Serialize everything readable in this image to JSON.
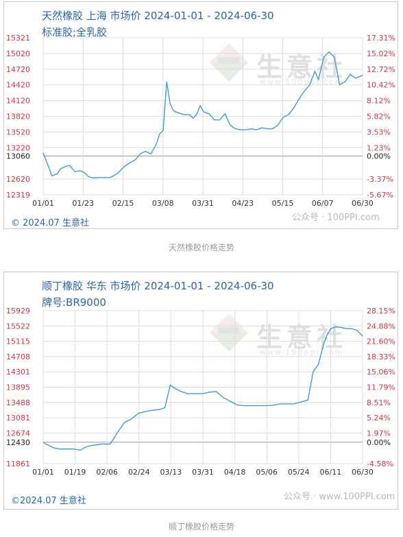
{
  "charts": [
    {
      "title": "天然橡胶 上海 市场价 2024-01-01 - 2024-06-30",
      "subtitle": "标准胶;全乳胶",
      "copyright": "© 2024.07 生意社",
      "watermark": "公众号 · 100PPI.com",
      "logo_text": "生意社",
      "logo_url": "www.100ppi.com",
      "caption": "天然橡胶价格走势"
    },
    {
      "title": "顺丁橡胶 华东 市场价 2024-01-01 - 2024-06-30",
      "subtitle": "牌号:BR9000",
      "copyright": "©2024.07 生意社",
      "watermark": "公众号 · www.100PPI.com",
      "logo_text": "生意社",
      "logo_url": "www.100ppi.com",
      "caption": "顺丁橡胶价格走势"
    }
  ],
  "colors": {
    "line": "#3b9cd9",
    "left_axis": "#d9333f",
    "baseline_label": "#222222",
    "title": "#2a64b0",
    "grid": "#dcdcdc"
  },
  "chart_data": [
    {
      "type": "line",
      "title": "天然橡胶 上海 市场价 2024-01-01 - 2024-06-30",
      "x_ticks": [
        "01/01",
        "01/23",
        "02/15",
        "03/08",
        "03/31",
        "04/23",
        "05/15",
        "06/07",
        "06/30"
      ],
      "y_ticks": [
        12319,
        12620,
        13060,
        13220,
        13520,
        13820,
        14120,
        14420,
        14720,
        15020,
        15321
      ],
      "y_right_ticks": [
        "-5.67%",
        "-3.37%",
        "0.00%",
        "1.23%",
        "3.53%",
        "5.82%",
        "8.12%",
        "10.42%",
        "12.72%",
        "15.02%",
        "17.31%"
      ],
      "baseline": 13060,
      "ylim": [
        12319,
        15321
      ],
      "grid": true,
      "series": [
        {
          "x": [
            "2024-01-01",
            "2024-01-03",
            "2024-01-06",
            "2024-01-09",
            "2024-01-11",
            "2024-01-13",
            "2024-01-16",
            "2024-01-19",
            "2024-01-22",
            "2024-01-24",
            "2024-01-27",
            "2024-01-30",
            "2024-02-02",
            "2024-02-05",
            "2024-02-08",
            "2024-02-12",
            "2024-02-16",
            "2024-02-19",
            "2024-02-22",
            "2024-02-25",
            "2024-02-28",
            "2024-03-02",
            "2024-03-05",
            "2024-03-07",
            "2024-03-09",
            "2024-03-11",
            "2024-03-13",
            "2024-03-15",
            "2024-03-18",
            "2024-03-21",
            "2024-03-24",
            "2024-03-26",
            "2024-03-28",
            "2024-03-30",
            "2024-04-01",
            "2024-04-04",
            "2024-04-07",
            "2024-04-10",
            "2024-04-13",
            "2024-04-16",
            "2024-04-19",
            "2024-04-22",
            "2024-04-25",
            "2024-04-28",
            "2024-05-01",
            "2024-05-04",
            "2024-05-07",
            "2024-05-10",
            "2024-05-13",
            "2024-05-16",
            "2024-05-19",
            "2024-05-22",
            "2024-05-25",
            "2024-05-28",
            "2024-05-31",
            "2024-06-03",
            "2024-06-05",
            "2024-06-08",
            "2024-06-11",
            "2024-06-14",
            "2024-06-17",
            "2024-06-20",
            "2024-06-23",
            "2024-06-26",
            "2024-06-30"
          ],
          "y": [
            13120,
            12950,
            12680,
            12720,
            12820,
            12850,
            12880,
            12760,
            12780,
            12750,
            12660,
            12640,
            12650,
            12650,
            12650,
            12720,
            12860,
            12930,
            12980,
            13100,
            13150,
            13100,
            13280,
            13480,
            13550,
            14480,
            14050,
            13920,
            13880,
            13850,
            13850,
            13780,
            13860,
            14020,
            13900,
            13870,
            13750,
            13750,
            13870,
            13650,
            13580,
            13560,
            13560,
            13580,
            13560,
            13600,
            13580,
            13580,
            13650,
            13800,
            13850,
            13980,
            14150,
            14300,
            14420,
            14680,
            14520,
            14950,
            15050,
            14950,
            14420,
            14480,
            14620,
            14550,
            14600
          ]
        }
      ]
    },
    {
      "type": "line",
      "title": "顺丁橡胶 华东 市场价 2024-01-01 - 2024-06-30",
      "x_ticks": [
        "01/01",
        "01/19",
        "02/06",
        "02/24",
        "03/13",
        "03/31",
        "04/18",
        "05/06",
        "05/24",
        "06/11",
        "06/30"
      ],
      "y_ticks": [
        11861,
        12430,
        12674,
        13081,
        13488,
        13895,
        14301,
        14708,
        15115,
        15522,
        15929
      ],
      "y_right_ticks": [
        "-4.58%",
        "0.00%",
        "1.97%",
        "5.24%",
        "8.51%",
        "11.79%",
        "15.06%",
        "18.33%",
        "21.60%",
        "24.88%",
        "28.15%"
      ],
      "baseline": 12430,
      "ylim": [
        11861,
        15929
      ],
      "grid": true,
      "series": [
        {
          "x": [
            "2024-01-01",
            "2024-01-04",
            "2024-01-07",
            "2024-01-10",
            "2024-01-14",
            "2024-01-18",
            "2024-01-22",
            "2024-01-25",
            "2024-01-29",
            "2024-02-03",
            "2024-02-08",
            "2024-02-12",
            "2024-02-16",
            "2024-02-20",
            "2024-02-24",
            "2024-02-28",
            "2024-03-03",
            "2024-03-07",
            "2024-03-10",
            "2024-03-13",
            "2024-03-15",
            "2024-03-19",
            "2024-03-23",
            "2024-03-27",
            "2024-03-31",
            "2024-04-04",
            "2024-04-08",
            "2024-04-12",
            "2024-04-16",
            "2024-04-20",
            "2024-04-24",
            "2024-04-28",
            "2024-05-02",
            "2024-05-06",
            "2024-05-10",
            "2024-05-14",
            "2024-05-18",
            "2024-05-22",
            "2024-05-26",
            "2024-05-30",
            "2024-06-02",
            "2024-06-05",
            "2024-06-08",
            "2024-06-10",
            "2024-06-12",
            "2024-06-15",
            "2024-06-18",
            "2024-06-21",
            "2024-06-24",
            "2024-06-27",
            "2024-06-30"
          ],
          "y": [
            12430,
            12350,
            12280,
            12250,
            12250,
            12250,
            12220,
            12300,
            12350,
            12380,
            12380,
            12680,
            12950,
            13050,
            13200,
            13250,
            13280,
            13300,
            13350,
            13950,
            13880,
            13780,
            13720,
            13720,
            13720,
            13760,
            13780,
            13620,
            13520,
            13420,
            13400,
            13400,
            13400,
            13400,
            13410,
            13450,
            13450,
            13450,
            13500,
            13550,
            14300,
            14500,
            15050,
            15300,
            15450,
            15500,
            15480,
            15450,
            15450,
            15400,
            15250
          ]
        }
      ]
    }
  ]
}
